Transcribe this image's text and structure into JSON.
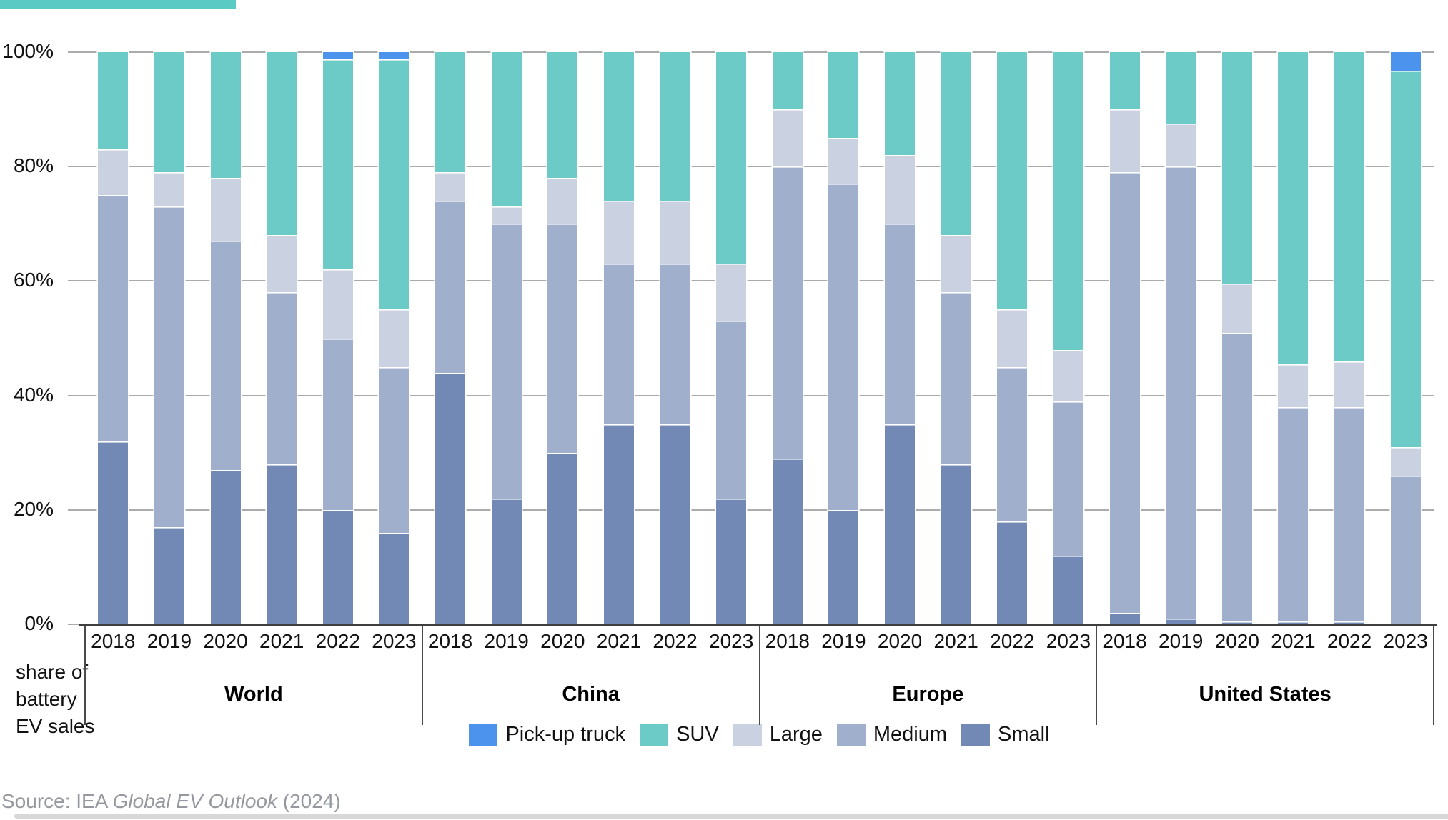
{
  "accent_color": "#59CBC4",
  "chart_data": {
    "type": "bar",
    "stacked": true,
    "title": "",
    "ylabel_lines": [
      "share of",
      "battery",
      "EV sales"
    ],
    "ylim": [
      0,
      100
    ],
    "ytick_labels": [
      "100%",
      "80%",
      "60%",
      "40%",
      "20%",
      "0%"
    ],
    "grid": true,
    "legend_position": "bottom",
    "groups": [
      "World",
      "China",
      "Europe",
      "United States"
    ],
    "years": [
      "2018",
      "2019",
      "2020",
      "2021",
      "2022",
      "2023"
    ],
    "series": [
      {
        "name": "Small",
        "color": "#7389B5",
        "values": [
          32,
          17,
          27,
          28,
          20,
          16,
          44,
          22,
          30,
          35,
          35,
          22,
          29,
          20,
          35,
          28,
          18,
          12,
          2,
          1,
          0.5,
          0.5,
          0.5,
          0
        ]
      },
      {
        "name": "Medium",
        "color": "#A0B0CC",
        "values": [
          43,
          56,
          40,
          30,
          30,
          29,
          30,
          48,
          40,
          28,
          28,
          31,
          51,
          57,
          35,
          30,
          27,
          27,
          77,
          79,
          50.5,
          37.5,
          37.5,
          26
        ]
      },
      {
        "name": "Large",
        "color": "#CAD2E1",
        "values": [
          8,
          6,
          11,
          10,
          12,
          10,
          5,
          3,
          8,
          11,
          11,
          10,
          10,
          8,
          12,
          10,
          10,
          9,
          11,
          7.5,
          8.5,
          7.5,
          8,
          5
        ]
      },
      {
        "name": "SUV",
        "color": "#6CCAC7",
        "values": [
          17,
          21,
          22,
          32,
          36.8,
          43.8,
          21,
          27,
          22,
          26,
          26,
          37,
          10,
          15,
          18,
          32,
          45,
          52,
          10,
          12.5,
          40.5,
          54.5,
          54,
          65.7
        ]
      },
      {
        "name": "Pick-up truck",
        "color": "#4B93ED",
        "values": [
          0,
          0,
          0,
          0,
          1.2,
          1.2,
          0,
          0,
          0,
          0,
          0,
          0,
          0,
          0,
          0,
          0,
          0,
          0,
          0,
          0,
          0,
          0,
          0,
          3.3
        ]
      }
    ]
  },
  "legend": {
    "items": [
      {
        "label": "Pick-up truck",
        "color": "#4B93ED"
      },
      {
        "label": "SUV",
        "color": "#6CCAC7"
      },
      {
        "label": "Large",
        "color": "#CAD2E1"
      },
      {
        "label": "Medium",
        "color": "#A0B0CC"
      },
      {
        "label": "Small",
        "color": "#7389B5"
      }
    ]
  },
  "footer": {
    "source_prefix": "Source: IEA ",
    "source_italic": "Global EV Outlook",
    "source_suffix": " (2024)"
  }
}
